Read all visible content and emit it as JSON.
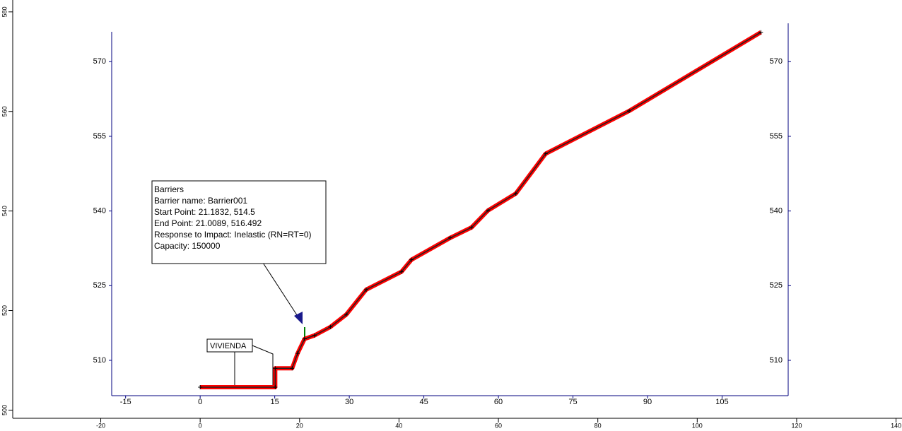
{
  "chart_data": {
    "type": "line",
    "x": [
      0,
      15.1,
      15.1,
      18.5,
      19.6,
      21.0,
      23.0,
      26.2,
      29.4,
      33.4,
      40.5,
      42.5,
      50.3,
      54.6,
      57.9,
      63.5,
      69.5,
      86.3,
      112.8
    ],
    "values": [
      504.6,
      504.6,
      508.4,
      508.4,
      511.4,
      514.3,
      515.0,
      516.7,
      519.2,
      524.2,
      527.8,
      530.2,
      534.6,
      536.7,
      540.1,
      543.5,
      551.5,
      560.1,
      575.9
    ],
    "color": "#ff0000",
    "xlim": [
      -17.8,
      118.3
    ],
    "ylim": [
      502.9,
      576.0
    ],
    "xticks": [
      -15,
      0,
      15,
      30,
      45,
      60,
      75,
      90,
      105
    ],
    "yticks": [
      510,
      525,
      540,
      555,
      570
    ],
    "rulers": {
      "left": [
        500,
        520,
        540,
        560,
        580
      ],
      "bottom": [
        -20,
        0,
        20,
        40,
        60,
        80,
        100,
        120,
        140
      ]
    },
    "tooltip": [
      "Barriers",
      "Barrier name: Barrier001",
      "Start Point: 21.1832, 514.5",
      "End  Point: 21.0089, 516.492",
      "Response to Impact: Inelastic (RN=RT=0)",
      "Capacity: 150000"
    ],
    "annotation": "VIVIENDA"
  }
}
